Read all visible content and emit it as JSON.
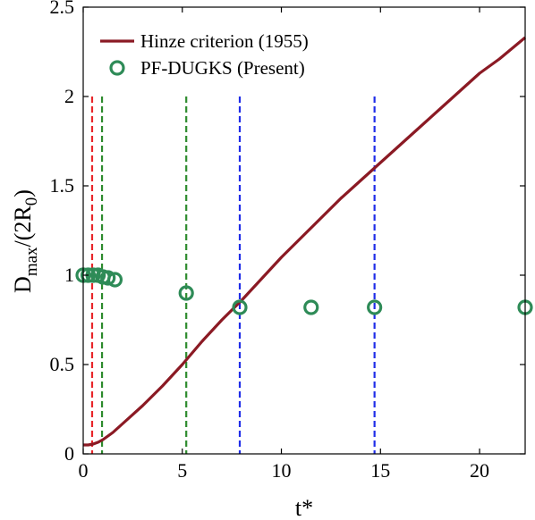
{
  "chart_data": {
    "type": "line",
    "xlabel": "t*",
    "ylabel_main": "D",
    "ylabel_sub1": "max",
    "ylabel_mid": "/(2R",
    "ylabel_sub2": "0",
    "ylabel_end": ")",
    "xlim": [
      0,
      22.3
    ],
    "ylim": [
      0,
      2.5
    ],
    "x_ticks": [
      0,
      5,
      10,
      15,
      20
    ],
    "y_ticks": [
      0,
      0.5,
      1,
      1.5,
      2,
      2.5
    ],
    "x_tick_labels": [
      "0",
      "5",
      "10",
      "15",
      "20"
    ],
    "y_tick_labels": [
      "0",
      "0.5",
      "1",
      "1.5",
      "2",
      "2.5"
    ],
    "legend_position": "top-left",
    "series": [
      {
        "name": "Hinze criterion (1955)",
        "type": "line",
        "color": "#8b1a24",
        "x": [
          0,
          0.25,
          0.5,
          0.75,
          1.0,
          1.5,
          2,
          3,
          4,
          5,
          6,
          7,
          8,
          9,
          10,
          11,
          12,
          13,
          14,
          15,
          16,
          17,
          18,
          19,
          20,
          21,
          22.3
        ],
        "y": [
          0.05,
          0.05,
          0.055,
          0.065,
          0.08,
          0.12,
          0.17,
          0.27,
          0.38,
          0.5,
          0.63,
          0.75,
          0.86,
          0.98,
          1.1,
          1.21,
          1.32,
          1.43,
          1.53,
          1.63,
          1.73,
          1.83,
          1.93,
          2.03,
          2.13,
          2.21,
          2.33
        ]
      },
      {
        "name": "PF-DUGKS (Present)",
        "type": "scatter",
        "color": "#2e8b57",
        "x": [
          0.0,
          0.25,
          0.5,
          0.75,
          1.0,
          1.25,
          1.6,
          5.2,
          7.9,
          11.5,
          14.7,
          22.3
        ],
        "y": [
          1.0,
          1.0,
          1.0,
          1.0,
          0.99,
          0.985,
          0.975,
          0.9,
          0.82,
          0.82,
          0.82,
          0.82
        ]
      }
    ],
    "vlines": [
      {
        "x": 0.45,
        "color": "#e8262a"
      },
      {
        "x": 0.95,
        "color": "#2e8b2e"
      },
      {
        "x": 5.2,
        "color": "#2e8b2e"
      },
      {
        "x": 7.9,
        "color": "#1f2de8"
      },
      {
        "x": 14.7,
        "color": "#1f2de8"
      }
    ]
  }
}
